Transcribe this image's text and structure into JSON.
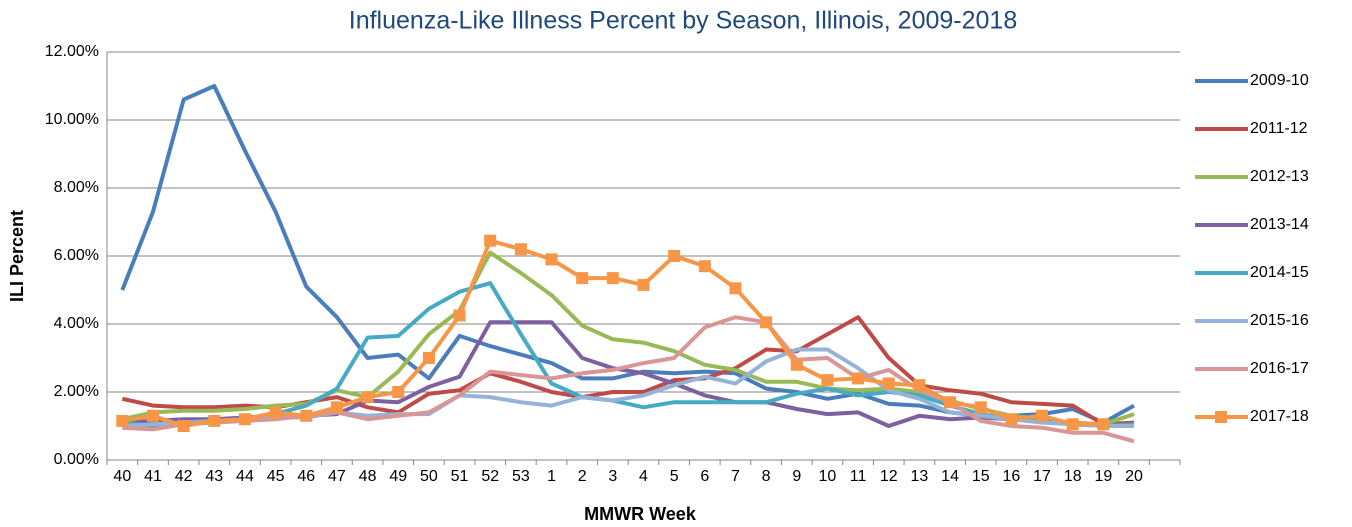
{
  "chart_data": {
    "type": "line",
    "title": "Influenza-Like Illness Percent by Season, Illinois, 2009-2018",
    "x_label": "MMWR Week",
    "y_label": "ILI Percent",
    "categories": [
      "40",
      "41",
      "42",
      "43",
      "44",
      "45",
      "46",
      "47",
      "48",
      "49",
      "50",
      "51",
      "52",
      "53",
      "1",
      "2",
      "3",
      "4",
      "5",
      "6",
      "7",
      "8",
      "9",
      "10",
      "11",
      "12",
      "13",
      "14",
      "15",
      "16",
      "17",
      "18",
      "19",
      "20"
    ],
    "ylim": [
      0,
      12
    ],
    "yticks": [
      {
        "value": 0,
        "label": "0.00%"
      },
      {
        "value": 2,
        "label": "2.00%"
      },
      {
        "value": 4,
        "label": "4.00%"
      },
      {
        "value": 6,
        "label": "6.00%"
      },
      {
        "value": 8,
        "label": "8.00%"
      },
      {
        "value": 10,
        "label": "10.00%"
      },
      {
        "value": 12,
        "label": "12.00%"
      }
    ],
    "grid": true,
    "legend": "right",
    "series": [
      {
        "name": "2009-10",
        "color": "#4a7ebb",
        "values": [
          5.0,
          7.3,
          10.6,
          11.0,
          9.1,
          7.3,
          5.1,
          4.2,
          3.0,
          3.1,
          2.4,
          3.65,
          3.35,
          3.1,
          2.85,
          2.4,
          2.4,
          2.6,
          2.55,
          2.6,
          2.55,
          2.1,
          2.0,
          1.8,
          1.95,
          1.65,
          1.6,
          1.4,
          1.3,
          1.3,
          1.35,
          1.5,
          1.1,
          1.6
        ]
      },
      {
        "name": "2011-12",
        "color": "#be4b48",
        "values": [
          1.8,
          1.6,
          1.55,
          1.55,
          1.6,
          1.55,
          1.7,
          1.85,
          1.55,
          1.4,
          1.95,
          2.05,
          2.55,
          2.3,
          2.0,
          1.85,
          2.0,
          2.0,
          2.35,
          2.4,
          2.7,
          3.25,
          3.2,
          3.7,
          4.2,
          3.0,
          2.2,
          2.05,
          1.95,
          1.7,
          1.65,
          1.6,
          1.05,
          1.1
        ]
      },
      {
        "name": "2012-13",
        "color": "#98b954",
        "values": [
          1.2,
          1.4,
          1.45,
          1.45,
          1.5,
          1.6,
          1.65,
          2.05,
          1.85,
          2.6,
          3.7,
          4.4,
          6.1,
          5.5,
          4.85,
          3.95,
          3.55,
          3.45,
          3.2,
          2.8,
          2.65,
          2.3,
          2.3,
          2.1,
          2.05,
          2.1,
          2.0,
          1.75,
          1.5,
          1.3,
          1.2,
          1.1,
          1.05,
          1.35
        ]
      },
      {
        "name": "2013-14",
        "color": "#7d60a0",
        "values": [
          1.1,
          1.15,
          1.2,
          1.2,
          1.25,
          1.3,
          1.3,
          1.35,
          1.75,
          1.7,
          2.15,
          2.45,
          4.05,
          4.05,
          4.05,
          3.0,
          2.7,
          2.55,
          2.25,
          1.9,
          1.7,
          1.7,
          1.5,
          1.35,
          1.4,
          1.0,
          1.3,
          1.2,
          1.25,
          1.2,
          1.2,
          1.05,
          1.0,
          1.05
        ]
      },
      {
        "name": "2014-15",
        "color": "#46aac5",
        "values": [
          1.1,
          1.0,
          1.1,
          1.15,
          1.2,
          1.35,
          1.6,
          2.1,
          3.6,
          3.65,
          4.45,
          4.95,
          5.2,
          3.7,
          2.25,
          1.85,
          1.75,
          1.55,
          1.7,
          1.7,
          1.7,
          1.7,
          1.95,
          2.1,
          1.9,
          2.0,
          1.9,
          1.6,
          1.35,
          1.2,
          1.2,
          1.05,
          1.0,
          1.05
        ]
      },
      {
        "name": "2015-16",
        "color": "#95b3d7",
        "values": [
          1.0,
          1.05,
          1.1,
          1.15,
          1.2,
          1.25,
          1.25,
          1.4,
          1.3,
          1.35,
          1.35,
          1.9,
          1.85,
          1.7,
          1.6,
          1.85,
          1.75,
          1.9,
          2.2,
          2.45,
          2.25,
          2.9,
          3.25,
          3.25,
          2.7,
          2.05,
          1.8,
          1.4,
          1.3,
          1.2,
          1.1,
          1.05,
          1.0,
          1.0
        ]
      },
      {
        "name": "2016-17",
        "color": "#d99694",
        "values": [
          0.95,
          0.9,
          1.05,
          1.1,
          1.15,
          1.2,
          1.3,
          1.4,
          1.2,
          1.3,
          1.4,
          1.9,
          2.6,
          2.5,
          2.4,
          2.55,
          2.65,
          2.85,
          3.0,
          3.9,
          4.2,
          4.05,
          2.95,
          3.0,
          2.4,
          2.65,
          2.05,
          1.7,
          1.15,
          1.0,
          0.95,
          0.8,
          0.8,
          0.55
        ]
      },
      {
        "name": "2017-18",
        "color": "#f79646",
        "marker": "square",
        "values": [
          1.15,
          1.3,
          1.0,
          1.15,
          1.2,
          1.4,
          1.3,
          1.55,
          1.85,
          2.0,
          3.0,
          4.25,
          6.45,
          6.2,
          5.9,
          5.35,
          5.35,
          5.15,
          6.0,
          5.7,
          5.05,
          4.05,
          2.8,
          2.35,
          2.4,
          2.25,
          2.2,
          1.7,
          1.55,
          1.2,
          1.3,
          1.05,
          1.05,
          null
        ]
      }
    ]
  }
}
